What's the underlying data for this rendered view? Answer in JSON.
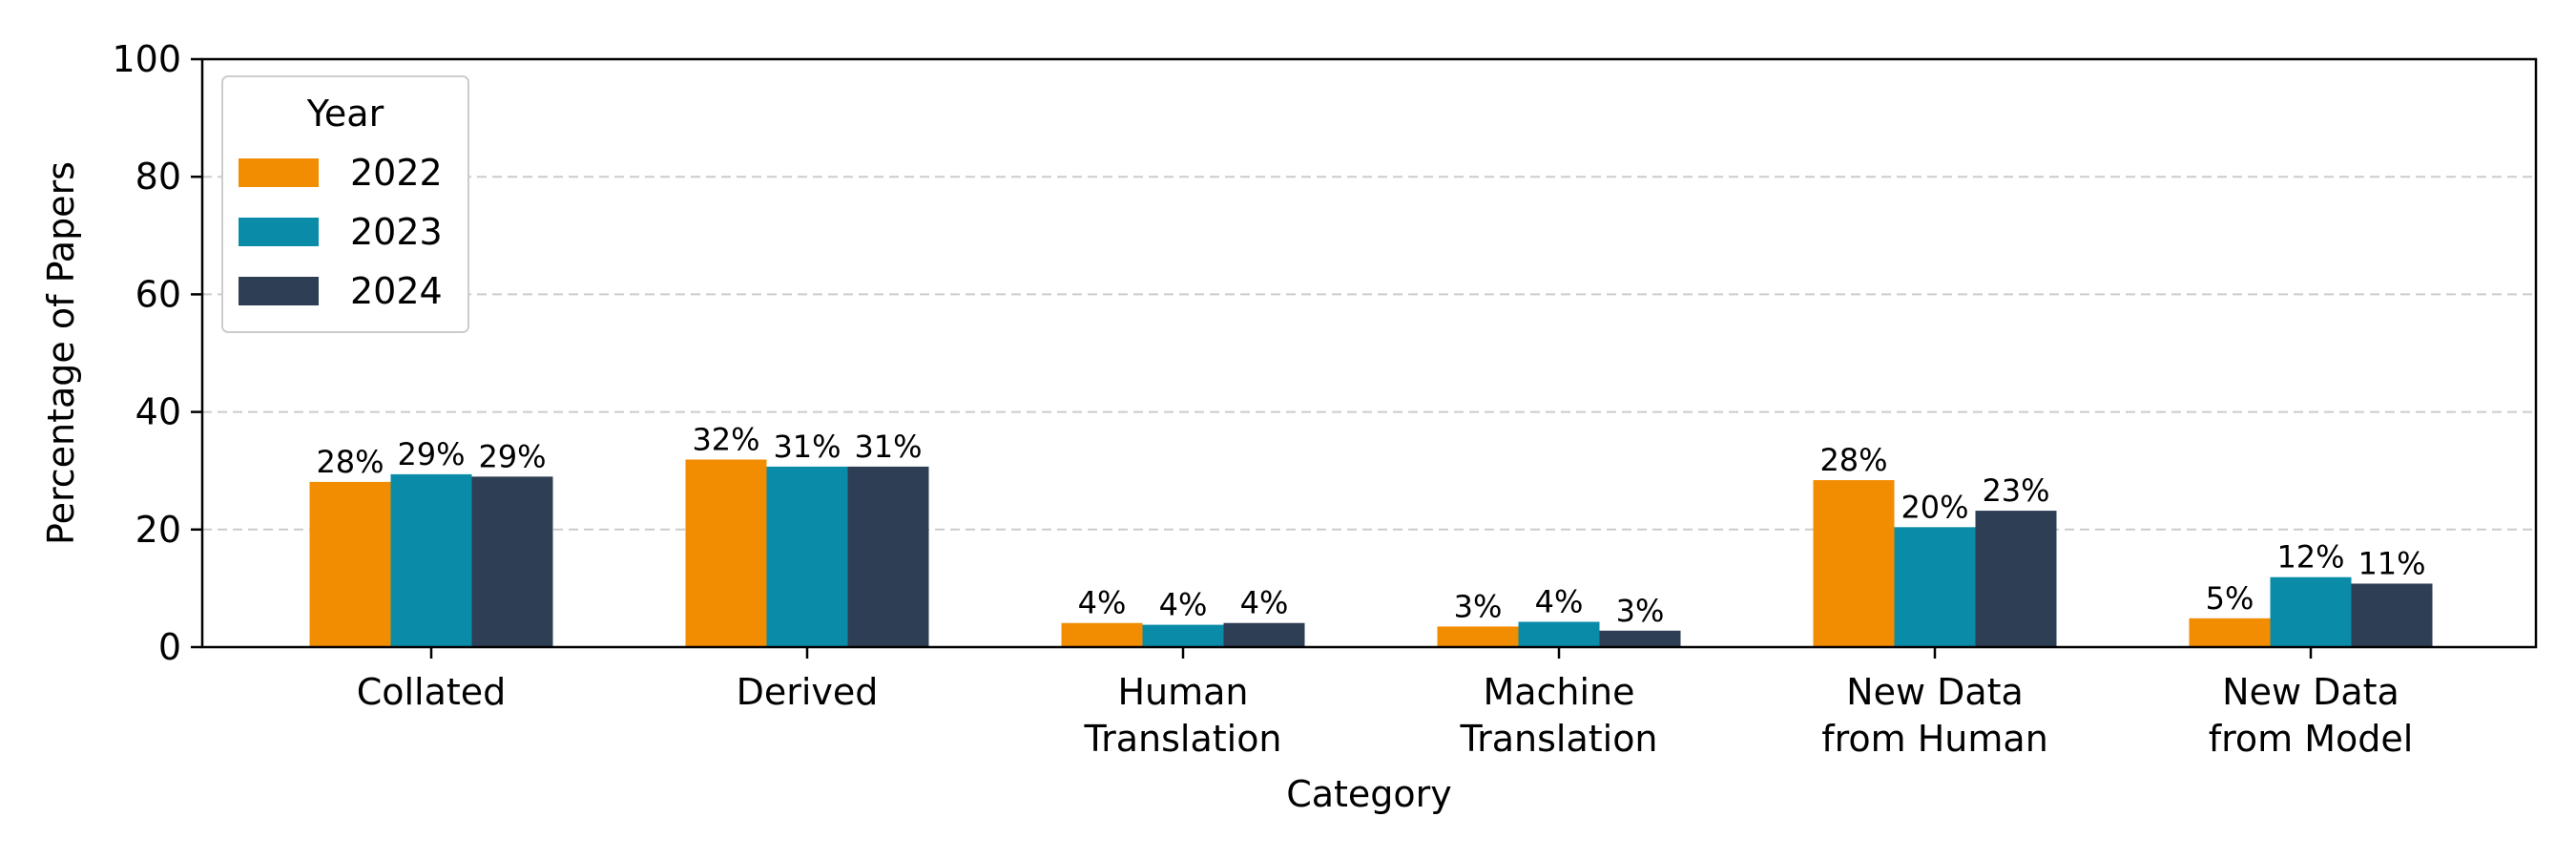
{
  "chart_data": {
    "type": "bar",
    "categories": [
      [
        "Collated"
      ],
      [
        "Derived"
      ],
      [
        "Human",
        "Translation"
      ],
      [
        "Machine",
        "Translation"
      ],
      [
        "New Data",
        "from Human"
      ],
      [
        "New Data",
        "from Model"
      ]
    ],
    "series": [
      {
        "name": "2022",
        "color": "#f28c00",
        "values": [
          28.1,
          31.9,
          4.1,
          3.5,
          28.4,
          4.9
        ],
        "labels": [
          "28%",
          "32%",
          "4%",
          "3%",
          "28%",
          "5%"
        ]
      },
      {
        "name": "2023",
        "color": "#0a8ca8",
        "values": [
          29.4,
          30.7,
          3.8,
          4.3,
          20.4,
          11.9
        ],
        "labels": [
          "29%",
          "31%",
          "4%",
          "4%",
          "20%",
          "12%"
        ]
      },
      {
        "name": "2024",
        "color": "#2e3e55",
        "values": [
          29.0,
          30.7,
          4.1,
          2.8,
          23.2,
          10.8
        ],
        "labels": [
          "29%",
          "31%",
          "4%",
          "3%",
          "23%",
          "11%"
        ]
      }
    ],
    "xlabel": "Category",
    "ylabel": "Percentage of Papers",
    "ylim": [
      0,
      100
    ],
    "yticks": [
      0,
      20,
      40,
      60,
      80,
      100
    ],
    "grid": "y-dashed",
    "legend": {
      "title": "Year",
      "placement": "top-left"
    }
  }
}
